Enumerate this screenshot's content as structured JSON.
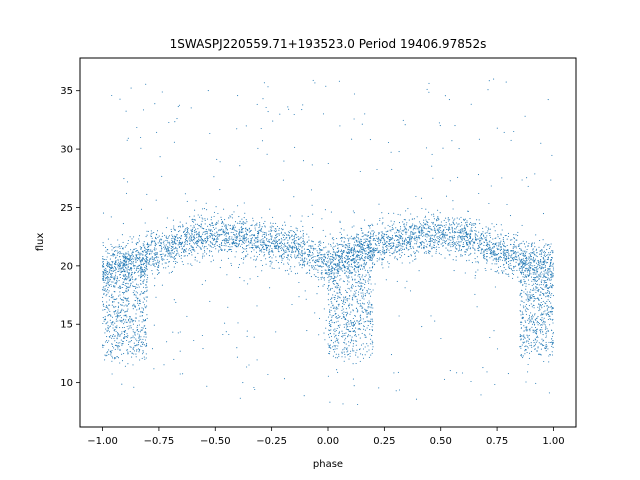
{
  "chart_data": {
    "type": "scatter",
    "title": "1SWASPJ220559.71+193523.0 Period 19406.97852s",
    "xlabel": "phase",
    "ylabel": "flux",
    "xlim": [
      -1.1,
      1.1
    ],
    "ylim": [
      6.2,
      37.8
    ],
    "x_ticks": [
      -1.0,
      -0.75,
      -0.5,
      -0.25,
      0.0,
      0.25,
      0.5,
      0.75,
      1.0
    ],
    "x_tick_labels": [
      "−1.00",
      "−0.75",
      "−0.50",
      "−0.25",
      "0.00",
      "0.25",
      "0.50",
      "0.75",
      "1.00"
    ],
    "y_ticks": [
      10,
      15,
      20,
      25,
      30,
      35
    ],
    "y_tick_labels": [
      "10",
      "15",
      "20",
      "25",
      "30",
      "35"
    ],
    "grid": false,
    "legend": "none",
    "point_color": "#1f77b4",
    "series": [
      {
        "values_description_points": [
          {
            "x": -1.0,
            "y": 20.0
          },
          {
            "x": -0.9,
            "y": 20.3
          },
          {
            "x": -0.75,
            "y": 21.2
          },
          {
            "x": -0.6,
            "y": 22.4
          },
          {
            "x": -0.5,
            "y": 22.6
          },
          {
            "x": -0.4,
            "y": 22.5
          },
          {
            "x": -0.25,
            "y": 22.0
          },
          {
            "x": -0.1,
            "y": 21.2
          },
          {
            "x": 0.0,
            "y": 20.2
          },
          {
            "x": 0.1,
            "y": 21.2
          },
          {
            "x": 0.25,
            "y": 22.0
          },
          {
            "x": 0.4,
            "y": 22.5
          },
          {
            "x": 0.5,
            "y": 22.6
          },
          {
            "x": 0.6,
            "y": 22.4
          },
          {
            "x": 0.75,
            "y": 21.2
          },
          {
            "x": 0.9,
            "y": 20.3
          },
          {
            "x": 1.0,
            "y": 20.0
          }
        ],
        "eclipse_minima": [
          {
            "x": -0.9,
            "y": 12.2
          },
          {
            "x": 0.1,
            "y": 12.2
          },
          {
            "x": 0.95,
            "y": 12.2
          }
        ]
      }
    ]
  }
}
